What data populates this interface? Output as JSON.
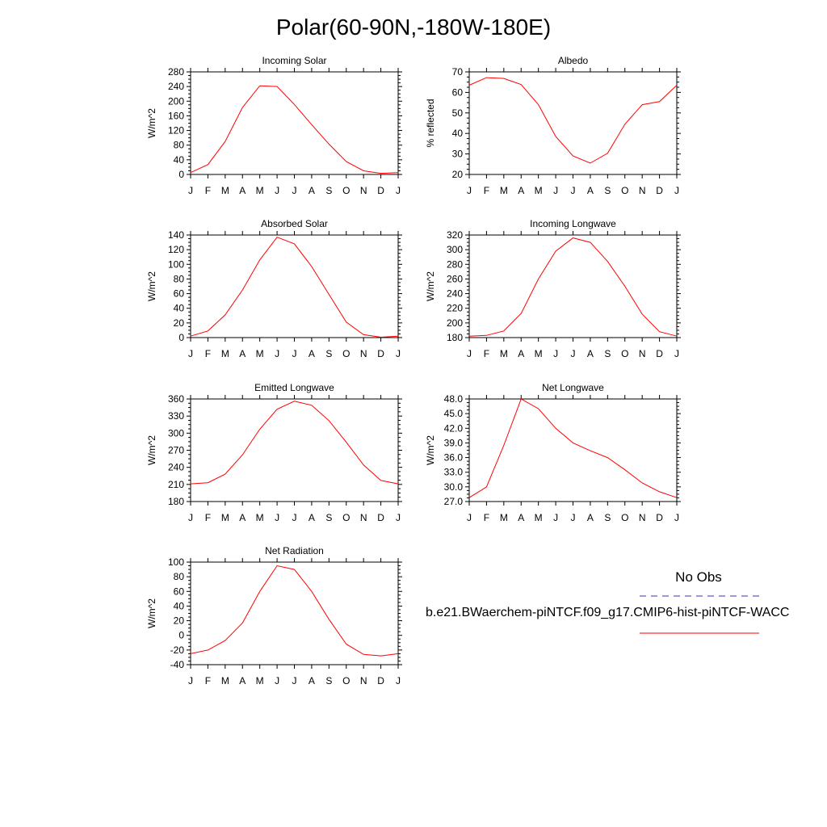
{
  "title": "Polar(60-90N,-180W-180E)",
  "legend": {
    "obs_label": "No Obs",
    "model_label": "b.e21.BWaerchem-piNTCF.f09_g17.CMIP6-hist-piNTCF-WACC",
    "obs_color": "#3333cc",
    "model_color": "#ff0000"
  },
  "chart_data": [
    {
      "type": "line",
      "title": "Incoming Solar",
      "ylabel": "W/m^2",
      "x": [
        "J",
        "F",
        "M",
        "A",
        "M",
        "J",
        "J",
        "A",
        "S",
        "O",
        "N",
        "D",
        "J"
      ],
      "ylim": [
        0,
        280
      ],
      "yticks": [
        0,
        40,
        80,
        120,
        160,
        200,
        240,
        280
      ],
      "tick_labels": [
        "0",
        "40",
        "80",
        "120",
        "160",
        "200",
        "240",
        "280"
      ],
      "series": [
        {
          "values": [
            5,
            27,
            90,
            183,
            242,
            240,
            191,
            136,
            83,
            35,
            10,
            3,
            5
          ]
        }
      ]
    },
    {
      "type": "line",
      "title": "Albedo",
      "ylabel": "% reflected",
      "x": [
        "J",
        "F",
        "M",
        "A",
        "M",
        "J",
        "J",
        "A",
        "S",
        "O",
        "N",
        "D",
        "J"
      ],
      "ylim": [
        20,
        70
      ],
      "yticks": [
        20,
        30,
        40,
        50,
        60,
        70
      ],
      "tick_labels": [
        "20",
        "30",
        "40",
        "50",
        "60",
        "70"
      ],
      "series": [
        {
          "values": [
            63.5,
            67.2,
            66.8,
            63.8,
            54,
            38.5,
            29,
            25.5,
            30.3,
            44.5,
            54,
            55.5,
            63.5
          ]
        }
      ]
    },
    {
      "type": "line",
      "title": "Absorbed Solar",
      "ylabel": "W/m^2",
      "x": [
        "J",
        "F",
        "M",
        "A",
        "M",
        "J",
        "J",
        "A",
        "S",
        "O",
        "N",
        "D",
        "J"
      ],
      "ylim": [
        0,
        140
      ],
      "yticks": [
        0,
        20,
        40,
        60,
        80,
        100,
        120,
        140
      ],
      "tick_labels": [
        "0",
        "20",
        "40",
        "60",
        "80",
        "100",
        "120",
        "140"
      ],
      "series": [
        {
          "values": [
            2,
            9,
            31,
            65,
            106,
            137,
            128,
            97,
            59,
            21,
            4,
            0.5,
            2
          ]
        }
      ]
    },
    {
      "type": "line",
      "title": "Incoming Longwave",
      "ylabel": "W/m^2",
      "x": [
        "J",
        "F",
        "M",
        "A",
        "M",
        "J",
        "J",
        "A",
        "S",
        "O",
        "N",
        "D",
        "J"
      ],
      "ylim": [
        180,
        320
      ],
      "yticks": [
        180,
        200,
        220,
        240,
        260,
        280,
        300,
        320
      ],
      "tick_labels": [
        "180",
        "200",
        "220",
        "240",
        "260",
        "280",
        "300",
        "320"
      ],
      "series": [
        {
          "values": [
            182,
            183,
            189,
            213,
            260,
            298,
            316,
            310,
            284,
            250,
            212,
            188,
            182
          ]
        }
      ]
    },
    {
      "type": "line",
      "title": "Emitted Longwave",
      "ylabel": "W/m^2",
      "x": [
        "J",
        "F",
        "M",
        "A",
        "M",
        "J",
        "J",
        "A",
        "S",
        "O",
        "N",
        "D",
        "J"
      ],
      "ylim": [
        180,
        360
      ],
      "yticks": [
        180,
        210,
        240,
        270,
        300,
        330,
        360
      ],
      "tick_labels": [
        "180",
        "210",
        "240",
        "270",
        "300",
        "330",
        "360"
      ],
      "series": [
        {
          "values": [
            211,
            213,
            228,
            262,
            307,
            342,
            356,
            349,
            322,
            284,
            244,
            217,
            211
          ]
        }
      ]
    },
    {
      "type": "line",
      "title": "Net Longwave",
      "ylabel": "W/m^2",
      "x": [
        "J",
        "F",
        "M",
        "A",
        "M",
        "J",
        "J",
        "A",
        "S",
        "O",
        "N",
        "D",
        "J"
      ],
      "ylim": [
        27,
        48
      ],
      "yticks": [
        27,
        30,
        33,
        36,
        39,
        42,
        45,
        48
      ],
      "tick_labels": [
        "27.0",
        "30.0",
        "33.0",
        "36.0",
        "39.0",
        "42.0",
        "45.0",
        "48.0"
      ],
      "series": [
        {
          "values": [
            27.8,
            30,
            38.5,
            48,
            46,
            42,
            39,
            37.4,
            36,
            33.5,
            30.8,
            29,
            27.8
          ]
        }
      ]
    },
    {
      "type": "line",
      "title": "Net Radiation",
      "ylabel": "W/m^2",
      "x": [
        "J",
        "F",
        "M",
        "A",
        "M",
        "J",
        "J",
        "A",
        "S",
        "O",
        "N",
        "D",
        "J"
      ],
      "ylim": [
        -40,
        100
      ],
      "yticks": [
        -40,
        -20,
        0,
        20,
        40,
        60,
        80,
        100
      ],
      "tick_labels": [
        "-40",
        "-20",
        "0",
        "20",
        "40",
        "60",
        "80",
        "100"
      ],
      "series": [
        {
          "values": [
            -25,
            -20,
            -7,
            17,
            60,
            95,
            90,
            60,
            22,
            -12,
            -26,
            -28,
            -25
          ]
        }
      ]
    }
  ]
}
